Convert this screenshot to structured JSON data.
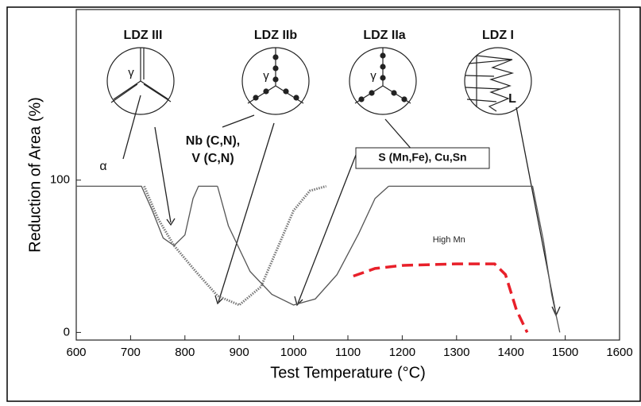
{
  "chart_data": {
    "type": "line",
    "xlabel": "Test Temperature (°C)",
    "ylabel": "Reduction of Area (%)",
    "xlim": [
      600,
      1600
    ],
    "xticks": [
      600,
      700,
      800,
      900,
      1000,
      1100,
      1200,
      1300,
      1400,
      1500,
      1600
    ],
    "ylim": [
      -5,
      212
    ],
    "yticks": [
      0,
      100
    ],
    "annotations": [
      "LDZ III",
      "LDZ IIb",
      "LDZ IIa",
      "LDZ I",
      "γ",
      "γ",
      "γ",
      "α",
      "L",
      "Nb (C,N),",
      "V (C,N)",
      "S (Mn,Fe), Cu,Sn"
    ],
    "series": [
      {
        "color": "#555555",
        "style": "solid",
        "x": [
          600,
          720,
          740,
          760,
          780,
          800,
          815,
          825,
          860
        ],
        "values": [
          96,
          96,
          80,
          62,
          57,
          64,
          88,
          96,
          96
        ]
      },
      {
        "color": "#777777",
        "style": "dotted",
        "x": [
          725,
          750,
          780,
          820,
          860,
          900,
          940,
          970,
          1000,
          1030,
          1060
        ],
        "values": [
          96,
          75,
          57,
          40,
          24,
          18,
          30,
          55,
          80,
          93,
          96
        ]
      },
      {
        "color": "#555555",
        "style": "solid",
        "x": [
          860,
          880,
          920,
          960,
          1000,
          1040,
          1080,
          1120,
          1150,
          1175
        ],
        "values": [
          96,
          70,
          40,
          25,
          18,
          22,
          38,
          65,
          88,
          96
        ]
      },
      {
        "color": "#555555",
        "style": "solid",
        "x": [
          1175,
          1300,
          1440,
          1460,
          1475,
          1490
        ],
        "values": [
          96,
          96,
          96,
          60,
          25,
          0
        ]
      },
      {
        "name": "High Mn",
        "color": "#e8202a",
        "style": "dashed",
        "x": [
          1110,
          1150,
          1200,
          1300,
          1370,
          1390,
          1410,
          1430
        ],
        "values": [
          37,
          42,
          44,
          45,
          45,
          38,
          15,
          0
        ]
      }
    ]
  }
}
